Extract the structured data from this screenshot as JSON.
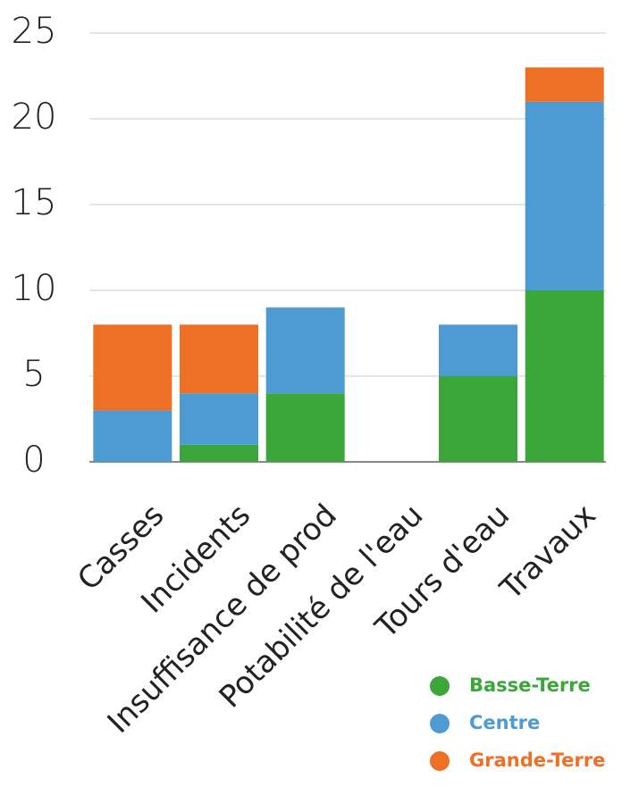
{
  "chart_data": {
    "type": "bar",
    "stacked": true,
    "categories": [
      "Casses",
      "Incidents",
      "Insuffisance de prod",
      "Potabilité de l'eau",
      "Tours d'eau",
      "Travaux"
    ],
    "series": [
      {
        "name": "Basse-Terre",
        "color": "#3ba73b",
        "values": [
          0,
          1,
          4,
          0,
          5,
          10
        ]
      },
      {
        "name": "Centre",
        "color": "#4e9bd4",
        "values": [
          3,
          3,
          5,
          0,
          3,
          11
        ]
      },
      {
        "name": "Grande-Terre",
        "color": "#ee7024",
        "values": [
          5,
          4,
          0,
          0,
          0,
          2
        ]
      }
    ],
    "ylim": [
      0,
      25
    ],
    "yticks": [
      0,
      5,
      10,
      15,
      20,
      25
    ],
    "grid": true,
    "legend": "bottom-right"
  }
}
